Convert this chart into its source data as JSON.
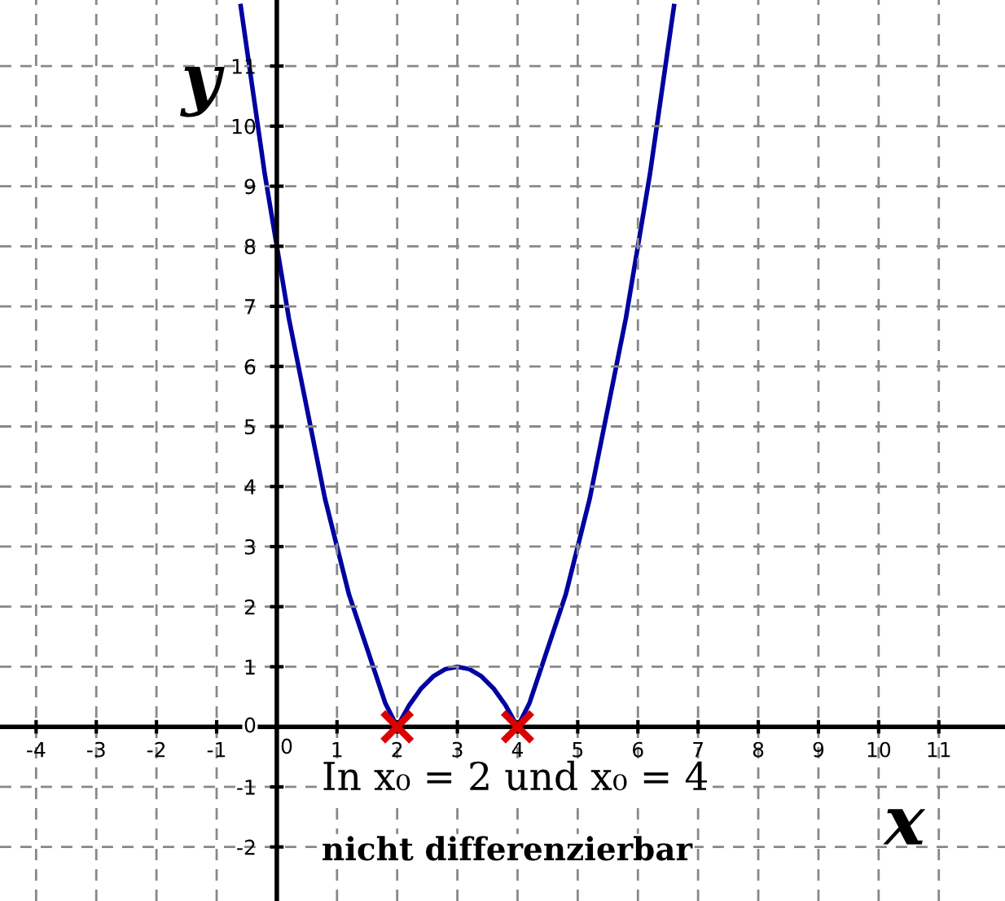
{
  "chart_data": {
    "type": "line",
    "xlabel": "x",
    "ylabel": "y",
    "xlim": [
      -4.6,
      12.1
    ],
    "ylim": [
      -2.9,
      12.1
    ],
    "xticks": [
      -4,
      -3,
      -2,
      -1,
      0,
      1,
      2,
      3,
      4,
      5,
      6,
      7,
      8,
      9,
      10,
      11
    ],
    "yticks": [
      -2,
      -1,
      0,
      1,
      2,
      3,
      4,
      5,
      6,
      7,
      8,
      9,
      10,
      11
    ],
    "grid": true,
    "legend": false,
    "annotations": [
      "In x₀ = 2 und x₀ = 4",
      "nicht differenzierbar"
    ],
    "series": [
      {
        "color": "#0000a0",
        "marker": "none",
        "line_style": "solid",
        "x": [
          -0.6,
          -0.4,
          -0.2,
          0,
          0.2,
          0.4,
          0.6,
          0.8,
          1.0,
          1.2,
          1.4,
          1.6,
          1.8,
          2.0,
          2.2,
          2.4,
          2.6,
          2.8,
          3.0,
          3.2,
          3.4,
          3.6,
          3.8,
          4.0,
          4.2,
          4.4,
          4.6,
          4.8,
          5.0,
          5.2,
          5.4,
          5.6,
          5.8,
          6.0,
          6.2,
          6.4,
          6.6
        ],
        "values": [
          12.0,
          10.6,
          9.2,
          8.0,
          6.8,
          5.8,
          4.8,
          3.8,
          3.0,
          2.2,
          1.6,
          1.0,
          0.4,
          0,
          0.36,
          0.64,
          0.84,
          0.96,
          1.0,
          0.96,
          0.84,
          0.64,
          0.36,
          0,
          0.4,
          1.0,
          1.6,
          2.2,
          3.0,
          3.8,
          4.8,
          5.8,
          6.8,
          8.0,
          9.2,
          10.6,
          12.0
        ]
      },
      {
        "type": "scatter",
        "color": "#dd0000",
        "marker": "cross",
        "x": [
          2,
          4
        ],
        "values": [
          0,
          0
        ]
      }
    ]
  }
}
